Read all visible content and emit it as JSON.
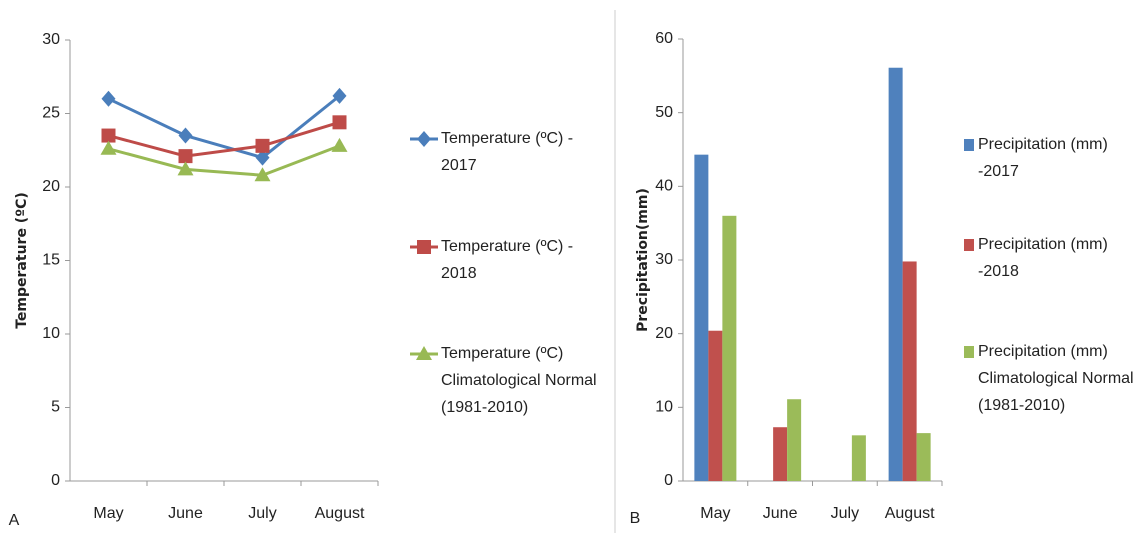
{
  "chart_data": [
    {
      "type": "line",
      "panel": "A",
      "y_label": "Temperature (ºC)",
      "categories": [
        "May",
        "June",
        "July",
        "August"
      ],
      "ylim": [
        0,
        30
      ],
      "yticks": [
        0,
        5,
        10,
        15,
        20,
        25,
        30
      ],
      "series": [
        {
          "name": "Temperature (ºC) - 2017",
          "color": "#4a7ebb",
          "marker": "diamond",
          "values": [
            26,
            23.5,
            22,
            26.2
          ]
        },
        {
          "name": "Temperature (ºC) - 2018",
          "color": "#be4b48",
          "marker": "square",
          "values": [
            23.5,
            22.1,
            22.8,
            24.4
          ]
        },
        {
          "name": "Temperature (ºC) Climatological Normal (1981-2010)",
          "color": "#98b954",
          "marker": "triangle",
          "values": [
            22.6,
            21.2,
            20.8,
            22.8
          ]
        }
      ]
    },
    {
      "type": "bar",
      "panel": "B",
      "y_label": "Precipitation(mm)",
      "categories": [
        "May",
        "June",
        "July",
        "August"
      ],
      "ylim": [
        0,
        60
      ],
      "yticks": [
        0,
        10,
        20,
        30,
        40,
        50,
        60
      ],
      "series": [
        {
          "name": "Precipitation (mm) -2017",
          "color": "#4f81bd",
          "values": [
            44.3,
            0,
            0,
            56.1
          ]
        },
        {
          "name": "Precipitation (mm) -2018",
          "color": "#c0504d",
          "values": [
            20.4,
            7.3,
            0,
            29.8
          ]
        },
        {
          "name": "Precipitation (mm) Climatological Normal (1981-2010)",
          "color": "#9bbb59",
          "values": [
            36,
            11.1,
            6.2,
            6.5
          ]
        }
      ]
    }
  ]
}
